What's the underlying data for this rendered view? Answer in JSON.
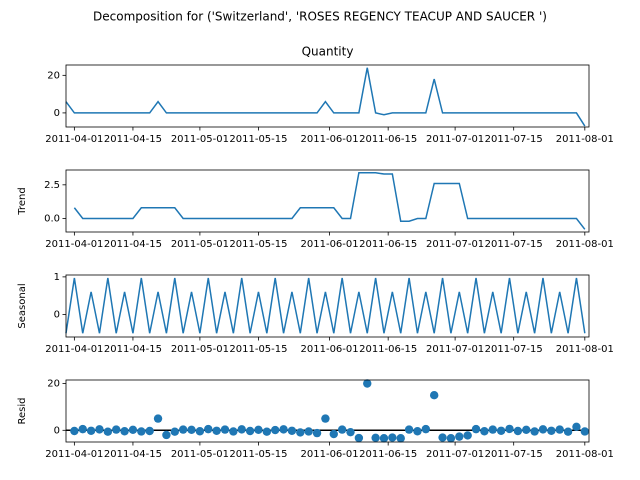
{
  "title": "Decomposition for ('Switzerland', 'ROSES REGENCY TEACUP AND SAUCER ')",
  "chart_data": [
    {
      "type": "line",
      "title": "Quantity",
      "color": "#1f77b4",
      "x": [
        "2011-03-30",
        "2011-04-01",
        "2011-04-03",
        "2011-04-05",
        "2011-04-07",
        "2011-04-09",
        "2011-04-11",
        "2011-04-13",
        "2011-04-15",
        "2011-04-17",
        "2011-04-19",
        "2011-04-21",
        "2011-04-23",
        "2011-04-25",
        "2011-04-27",
        "2011-04-29",
        "2011-05-01",
        "2011-05-03",
        "2011-05-05",
        "2011-05-07",
        "2011-05-09",
        "2011-05-11",
        "2011-05-13",
        "2011-05-15",
        "2011-05-17",
        "2011-05-19",
        "2011-05-21",
        "2011-05-23",
        "2011-05-25",
        "2011-05-27",
        "2011-05-29",
        "2011-05-31",
        "2011-06-02",
        "2011-06-04",
        "2011-06-06",
        "2011-06-08",
        "2011-06-10",
        "2011-06-12",
        "2011-06-14",
        "2011-06-16",
        "2011-06-18",
        "2011-06-20",
        "2011-06-22",
        "2011-06-24",
        "2011-06-26",
        "2011-06-28",
        "2011-06-30",
        "2011-07-02",
        "2011-07-04",
        "2011-07-06",
        "2011-07-08",
        "2011-07-10",
        "2011-07-12",
        "2011-07-14",
        "2011-07-16",
        "2011-07-18",
        "2011-07-20",
        "2011-07-22",
        "2011-07-24",
        "2011-07-26",
        "2011-07-28",
        "2011-07-30",
        "2011-08-01"
      ],
      "values": [
        6,
        0,
        0,
        0,
        0,
        0,
        0,
        0,
        0,
        0,
        0,
        6,
        0,
        0,
        0,
        0,
        0,
        0,
        0,
        0,
        0,
        0,
        0,
        0,
        0,
        0,
        0,
        0,
        0,
        0,
        0,
        6,
        0,
        0,
        0,
        0,
        24,
        0,
        -1,
        0,
        0,
        0,
        0,
        0,
        18,
        0,
        0,
        0,
        0,
        0,
        0,
        0,
        0,
        0,
        0,
        0,
        0,
        0,
        0,
        0,
        0,
        0,
        -7
      ],
      "xlim": [
        "2011-03-30",
        "2011-08-02"
      ],
      "ylim": [
        -7.5,
        25.5
      ],
      "yticks": [
        0,
        20
      ],
      "xticks": [
        "2011-04-01",
        "2011-04-15",
        "2011-05-01",
        "2011-05-15",
        "2011-06-01",
        "2011-06-15",
        "2011-07-01",
        "2011-07-15",
        "2011-08-01"
      ]
    },
    {
      "type": "line",
      "y_label": "Trend",
      "color": "#1f77b4",
      "x": [
        "2011-03-30",
        "2011-04-01",
        "2011-04-03",
        "2011-04-05",
        "2011-04-07",
        "2011-04-09",
        "2011-04-11",
        "2011-04-13",
        "2011-04-15",
        "2011-04-17",
        "2011-04-19",
        "2011-04-21",
        "2011-04-23",
        "2011-04-25",
        "2011-04-27",
        "2011-04-29",
        "2011-05-01",
        "2011-05-03",
        "2011-05-05",
        "2011-05-07",
        "2011-05-09",
        "2011-05-11",
        "2011-05-13",
        "2011-05-15",
        "2011-05-17",
        "2011-05-19",
        "2011-05-21",
        "2011-05-23",
        "2011-05-25",
        "2011-05-27",
        "2011-05-29",
        "2011-05-31",
        "2011-06-02",
        "2011-06-04",
        "2011-06-06",
        "2011-06-08",
        "2011-06-10",
        "2011-06-12",
        "2011-06-14",
        "2011-06-16",
        "2011-06-18",
        "2011-06-20",
        "2011-06-22",
        "2011-06-24",
        "2011-06-26",
        "2011-06-28",
        "2011-06-30",
        "2011-07-02",
        "2011-07-04",
        "2011-07-06",
        "2011-07-08",
        "2011-07-10",
        "2011-07-12",
        "2011-07-14",
        "2011-07-16",
        "2011-07-18",
        "2011-07-20",
        "2011-07-22",
        "2011-07-24",
        "2011-07-26",
        "2011-07-28",
        "2011-07-30",
        "2011-08-01"
      ],
      "values": [
        null,
        0.8,
        0,
        0,
        0,
        0,
        0,
        0,
        0,
        0.8,
        0.8,
        0.8,
        0.8,
        0.8,
        0,
        0,
        0,
        0,
        0,
        0,
        0,
        0,
        0,
        0,
        0,
        0,
        0,
        0,
        0.8,
        0.8,
        0.8,
        0.8,
        0.8,
        0,
        0,
        3.4,
        3.4,
        3.4,
        3.3,
        3.3,
        -0.2,
        -0.2,
        0,
        0,
        2.6,
        2.6,
        2.6,
        2.6,
        0,
        0,
        0,
        0,
        0,
        0,
        0,
        0,
        0,
        0,
        0,
        0,
        0,
        0,
        -0.8
      ],
      "xlim": [
        "2011-03-30",
        "2011-08-02"
      ],
      "ylim": [
        -1,
        3.6
      ],
      "yticks": [
        {
          "value": 0,
          "label": "0.0"
        },
        {
          "value": 2.5,
          "label": "2.5"
        }
      ],
      "xticks": [
        "2011-04-01",
        "2011-04-15",
        "2011-05-01",
        "2011-05-15",
        "2011-06-01",
        "2011-06-15",
        "2011-07-01",
        "2011-07-15",
        "2011-08-01"
      ]
    },
    {
      "type": "line",
      "y_label": "Seasonal",
      "color": "#1f77b4",
      "x": [
        "2011-03-30",
        "2011-04-01",
        "2011-04-03",
        "2011-04-05",
        "2011-04-07",
        "2011-04-09",
        "2011-04-11",
        "2011-04-13",
        "2011-04-15",
        "2011-04-17",
        "2011-04-19",
        "2011-04-21",
        "2011-04-23",
        "2011-04-25",
        "2011-04-27",
        "2011-04-29",
        "2011-05-01",
        "2011-05-03",
        "2011-05-05",
        "2011-05-07",
        "2011-05-09",
        "2011-05-11",
        "2011-05-13",
        "2011-05-15",
        "2011-05-17",
        "2011-05-19",
        "2011-05-21",
        "2011-05-23",
        "2011-05-25",
        "2011-05-27",
        "2011-05-29",
        "2011-05-31",
        "2011-06-02",
        "2011-06-04",
        "2011-06-06",
        "2011-06-08",
        "2011-06-10",
        "2011-06-12",
        "2011-06-14",
        "2011-06-16",
        "2011-06-18",
        "2011-06-20",
        "2011-06-22",
        "2011-06-24",
        "2011-06-26",
        "2011-06-28",
        "2011-06-30",
        "2011-07-02",
        "2011-07-04",
        "2011-07-06",
        "2011-07-08",
        "2011-07-10",
        "2011-07-12",
        "2011-07-14",
        "2011-07-16",
        "2011-07-18",
        "2011-07-20",
        "2011-07-22",
        "2011-07-24",
        "2011-07-26",
        "2011-07-28",
        "2011-07-30",
        "2011-08-01"
      ],
      "values": [
        -0.5,
        0.97,
        -0.5,
        0.6,
        -0.5,
        0.97,
        -0.5,
        0.6,
        -0.5,
        0.97,
        -0.5,
        0.6,
        -0.5,
        0.97,
        -0.5,
        0.6,
        -0.5,
        0.97,
        -0.5,
        0.6,
        -0.5,
        0.97,
        -0.5,
        0.6,
        -0.5,
        0.97,
        -0.5,
        0.6,
        -0.5,
        0.97,
        -0.5,
        0.6,
        -0.5,
        0.97,
        -0.5,
        0.6,
        -0.5,
        0.97,
        -0.5,
        0.6,
        -0.5,
        0.97,
        -0.5,
        0.6,
        -0.5,
        0.97,
        -0.5,
        0.6,
        -0.5,
        0.97,
        -0.5,
        0.6,
        -0.5,
        0.97,
        -0.5,
        0.6,
        -0.5,
        0.97,
        -0.5,
        0.6,
        -0.5,
        0.97,
        -0.5
      ],
      "xlim": [
        "2011-03-30",
        "2011-08-02"
      ],
      "ylim": [
        -0.6,
        1.05
      ],
      "yticks": [
        0,
        1
      ],
      "xticks": [
        "2011-04-01",
        "2011-04-15",
        "2011-05-01",
        "2011-05-15",
        "2011-06-01",
        "2011-06-15",
        "2011-07-01",
        "2011-07-15",
        "2011-08-01"
      ]
    },
    {
      "type": "scatter",
      "y_label": "Resid",
      "color": "#1f77b4",
      "x": [
        "2011-03-30",
        "2011-04-01",
        "2011-04-03",
        "2011-04-05",
        "2011-04-07",
        "2011-04-09",
        "2011-04-11",
        "2011-04-13",
        "2011-04-15",
        "2011-04-17",
        "2011-04-19",
        "2011-04-21",
        "2011-04-23",
        "2011-04-25",
        "2011-04-27",
        "2011-04-29",
        "2011-05-01",
        "2011-05-03",
        "2011-05-05",
        "2011-05-07",
        "2011-05-09",
        "2011-05-11",
        "2011-05-13",
        "2011-05-15",
        "2011-05-17",
        "2011-05-19",
        "2011-05-21",
        "2011-05-23",
        "2011-05-25",
        "2011-05-27",
        "2011-05-29",
        "2011-05-31",
        "2011-06-02",
        "2011-06-04",
        "2011-06-06",
        "2011-06-08",
        "2011-06-10",
        "2011-06-12",
        "2011-06-14",
        "2011-06-16",
        "2011-06-18",
        "2011-06-20",
        "2011-06-22",
        "2011-06-24",
        "2011-06-26",
        "2011-06-28",
        "2011-06-30",
        "2011-07-02",
        "2011-07-04",
        "2011-07-06",
        "2011-07-08",
        "2011-07-10",
        "2011-07-12",
        "2011-07-14",
        "2011-07-16",
        "2011-07-18",
        "2011-07-20",
        "2011-07-22",
        "2011-07-24",
        "2011-07-26",
        "2011-07-28",
        "2011-07-30",
        "2011-08-01"
      ],
      "values": [
        null,
        -0.3,
        0.5,
        -0.2,
        0.4,
        -0.6,
        0.3,
        -0.4,
        0.2,
        -0.5,
        -0.3,
        5,
        -2,
        -0.6,
        0.3,
        0.2,
        -0.4,
        0.5,
        -0.2,
        0.3,
        -0.5,
        0.4,
        -0.3,
        0.2,
        -0.6,
        0.1,
        0.4,
        -0.2,
        -0.9,
        -0.5,
        -1.2,
        5,
        -1.6,
        0.3,
        -0.8,
        -3.3,
        20,
        -3.2,
        -3.4,
        -3.1,
        -3.4,
        0.3,
        -0.4,
        0.5,
        15,
        -3.1,
        -3.4,
        -2.7,
        -2.2,
        0.5,
        -0.4,
        0.3,
        -0.2,
        0.6,
        -0.3,
        0.2,
        -0.5,
        0.4,
        -0.2,
        0.3,
        -0.6,
        1.5,
        -0.5
      ],
      "xlim": [
        "2011-03-30",
        "2011-08-02"
      ],
      "ylim": [
        -5,
        21.5
      ],
      "yticks": [
        0,
        20
      ],
      "xticks": [
        "2011-04-01",
        "2011-04-15",
        "2011-05-01",
        "2011-05-15",
        "2011-06-01",
        "2011-06-15",
        "2011-07-01",
        "2011-07-15",
        "2011-08-01"
      ]
    }
  ]
}
